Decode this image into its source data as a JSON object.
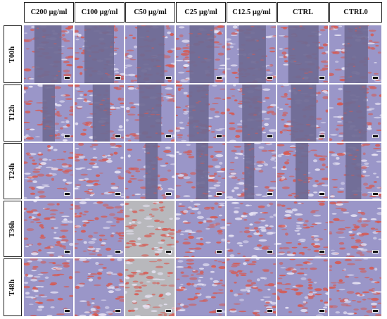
{
  "columns": [
    "C200 µg/ml",
    "C100 µg/ml",
    "C50 µg/ml",
    "C25 µg/ml",
    "C12.5 µg/ml",
    "CTRL",
    "CTRL0"
  ],
  "rows": [
    "T00h",
    "T12h",
    "T24h",
    "T36h",
    "T48h"
  ],
  "gap_open": [
    [
      0.55,
      0.6,
      0.55,
      0.5,
      0.55,
      0.6,
      0.45
    ],
    [
      0.25,
      0.35,
      0.45,
      0.4,
      0.4,
      0.5,
      0.45
    ],
    [
      0.0,
      0.0,
      0.25,
      0.25,
      0.2,
      0.25,
      0.3
    ],
    [
      0.0,
      0.0,
      0.0,
      0.0,
      0.0,
      0.0,
      0.0
    ],
    [
      0.0,
      0.0,
      0.0,
      0.0,
      0.0,
      0.0,
      0.0
    ]
  ],
  "colors": {
    "cell_red": "#d8584f",
    "gap_purple": "#6f6a94",
    "background_lavender": "#9a96c8",
    "phase_gray": "#b8b8bc",
    "header_border": "#222222"
  }
}
